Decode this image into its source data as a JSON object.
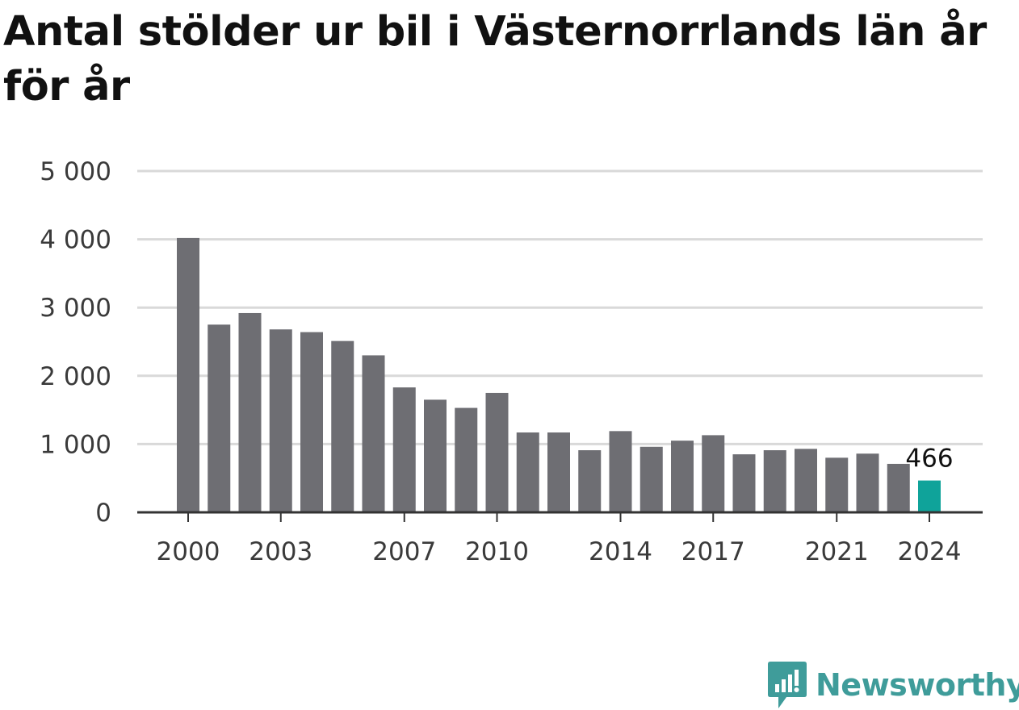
{
  "title": "Antal stölder ur bil i Västernorrlands län år för år",
  "brand": {
    "name": "Newsworthy",
    "logo_icon": "newsworthy-logo-icon",
    "color": "#3f9c9a"
  },
  "colors": {
    "bar": "#6e6e73",
    "highlight": "#0fa39a",
    "grid": "#d9d9d9",
    "axis": "#333333"
  },
  "chart_data": {
    "type": "bar",
    "title": "Antal stölder ur bil i Västernorrlands län år för år",
    "xlabel": "",
    "ylabel": "",
    "categories": [
      "2000",
      "2001",
      "2002",
      "2003",
      "2004",
      "2005",
      "2006",
      "2007",
      "2008",
      "2009",
      "2010",
      "2011",
      "2012",
      "2013",
      "2014",
      "2015",
      "2016",
      "2017",
      "2018",
      "2019",
      "2020",
      "2021",
      "2022",
      "2023",
      "2024"
    ],
    "values": [
      4020,
      2750,
      2920,
      2680,
      2640,
      2510,
      2300,
      1830,
      1650,
      1530,
      1750,
      1170,
      1170,
      910,
      1190,
      960,
      1050,
      1130,
      850,
      910,
      930,
      800,
      860,
      710,
      466
    ],
    "ylim": [
      0,
      5000
    ],
    "yticks": [
      0,
      1000,
      2000,
      3000,
      4000,
      5000
    ],
    "ytick_labels": [
      "0",
      "1 000",
      "2 000",
      "3 000",
      "4 000",
      "5 000"
    ],
    "xtick_labels": [
      "2000",
      "2003",
      "2007",
      "2010",
      "2014",
      "2017",
      "2021",
      "2024"
    ],
    "highlight_category": "2024",
    "data_label": "466",
    "grid": true
  }
}
